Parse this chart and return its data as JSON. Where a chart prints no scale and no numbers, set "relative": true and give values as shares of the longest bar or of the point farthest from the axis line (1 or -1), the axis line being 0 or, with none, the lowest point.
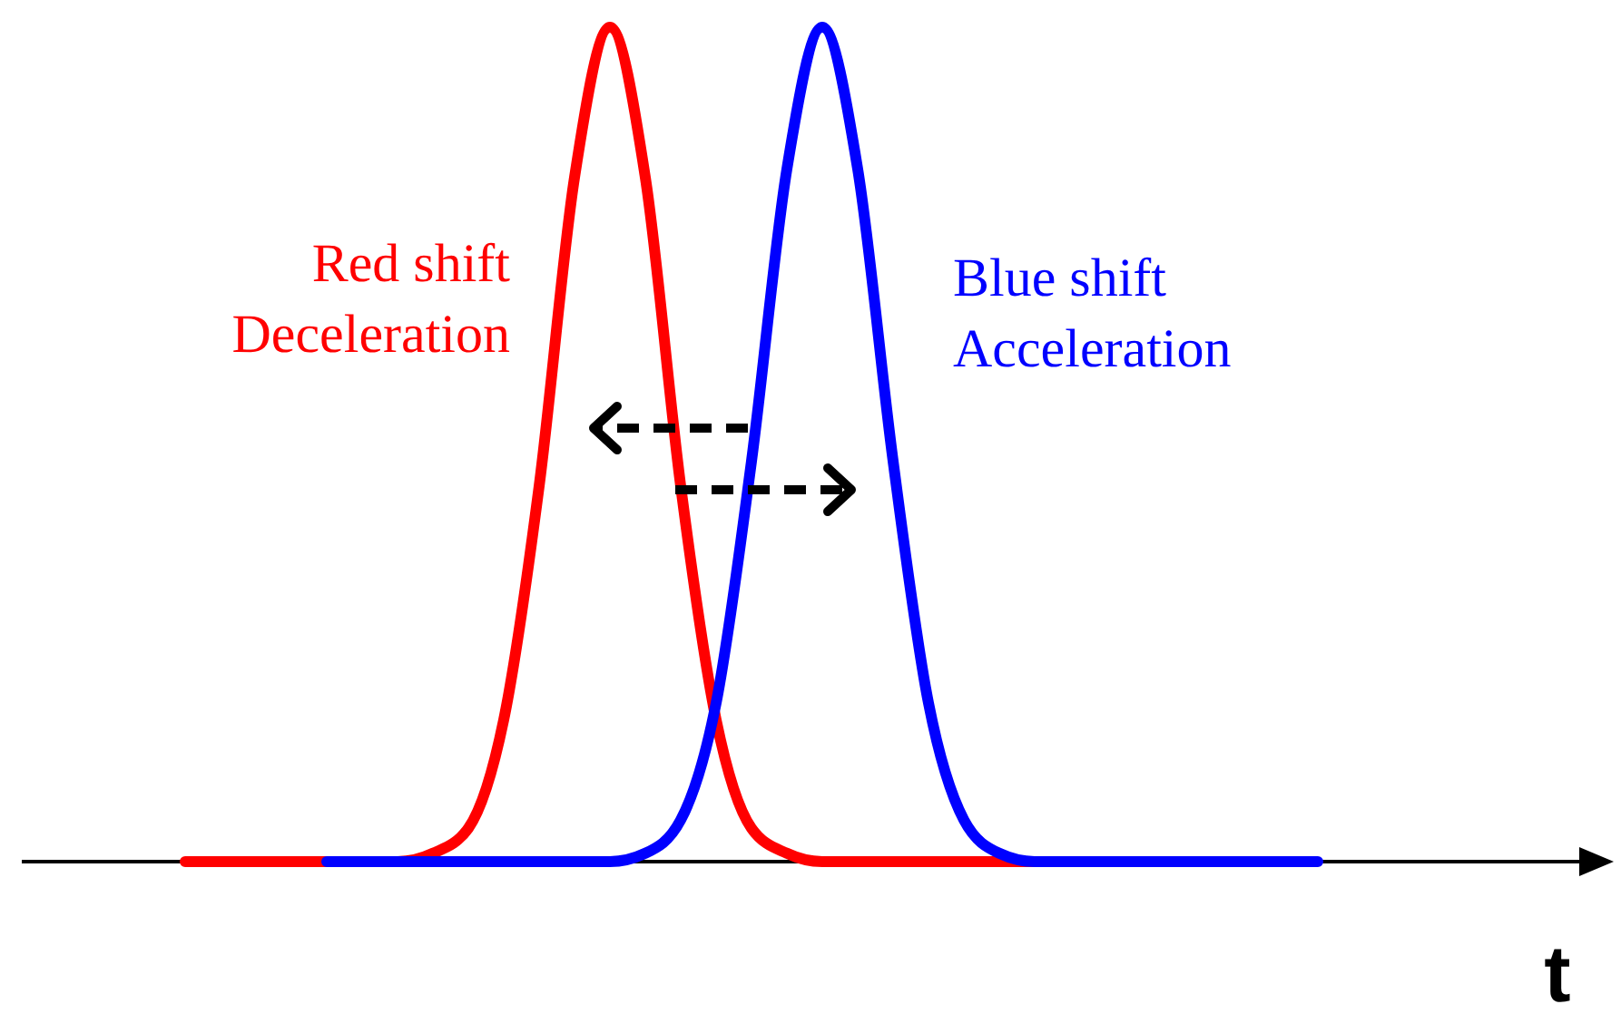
{
  "chart_data": {
    "type": "line",
    "relative": true,
    "xlabel": "t",
    "categories": [
      null,
      null,
      null,
      null,
      null,
      null,
      null,
      null,
      null,
      null,
      null,
      null,
      null,
      null,
      null,
      null,
      null,
      null,
      null,
      null,
      null,
      null,
      null,
      null,
      null,
      null,
      null,
      null,
      null,
      null,
      null,
      null,
      null
    ],
    "series": [
      {
        "name": "Red shift\nDeceleration",
        "color": "#ff0000",
        "values": [
          0,
          0,
          0,
          0,
          0,
          0,
          0,
          0.01,
          0.04,
          0.17,
          0.45,
          0.82,
          1,
          0.82,
          0.45,
          0.17,
          0.04,
          0.01,
          0,
          0,
          0,
          0,
          0,
          0,
          0,
          null,
          null,
          null,
          null,
          null,
          null,
          null,
          null
        ]
      },
      {
        "name": "Blue shift\nAcceleration",
        "color": "#0000ff",
        "values": [
          null,
          null,
          null,
          null,
          0,
          0,
          0,
          0,
          0,
          0,
          0,
          0,
          0,
          0.01,
          0.05,
          0.19,
          0.48,
          0.83,
          1,
          0.83,
          0.48,
          0.19,
          0.05,
          0.01,
          0,
          0,
          0,
          0,
          0,
          0,
          0,
          0,
          0
        ]
      }
    ]
  }
}
